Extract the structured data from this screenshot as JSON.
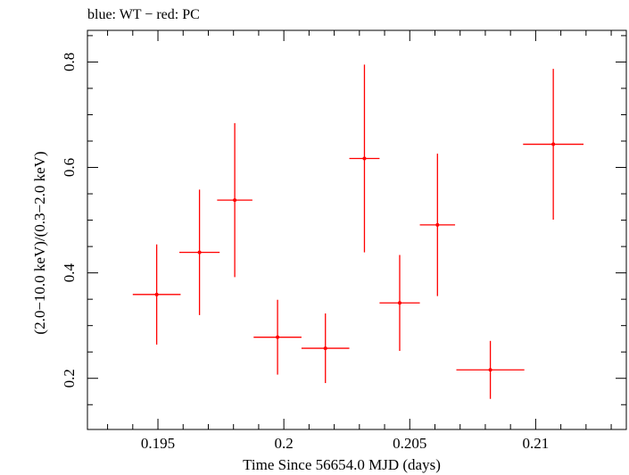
{
  "chart_data": {
    "type": "scatter",
    "title": "blue: WT − red: PC",
    "xlabel": "Time Since 56654.0 MJD (days)",
    "ylabel": "(2.0−10.0 keV)/(0.3−2.0 keV)",
    "xlim": [
      0.1922,
      0.2136
    ],
    "ylim": [
      0.103,
      0.86
    ],
    "x_ticks": [
      {
        "value": 0.195,
        "label": "0.195"
      },
      {
        "value": 0.2,
        "label": "0.2"
      },
      {
        "value": 0.205,
        "label": "0.205"
      },
      {
        "value": 0.21,
        "label": "0.21"
      }
    ],
    "x_minor_step": 0.001,
    "y_ticks": [
      {
        "value": 0.2,
        "label": "0.2"
      },
      {
        "value": 0.4,
        "label": "0.4"
      },
      {
        "value": 0.6,
        "label": "0.6"
      },
      {
        "value": 0.8,
        "label": "0.8"
      }
    ],
    "y_minor_step": 0.05,
    "grid": false,
    "series": [
      {
        "color": "#ff0000",
        "points": [
          {
            "x": 0.19495,
            "xerr": 0.00095,
            "y": 0.359,
            "yerr_low": 0.095,
            "yerr_high": 0.095
          },
          {
            "x": 0.19665,
            "xerr": 0.0008,
            "y": 0.439,
            "yerr_low": 0.119,
            "yerr_high": 0.119
          },
          {
            "x": 0.19805,
            "xerr": 0.0007,
            "y": 0.538,
            "yerr_low": 0.146,
            "yerr_high": 0.146
          },
          {
            "x": 0.19975,
            "xerr": 0.00095,
            "y": 0.278,
            "yerr_low": 0.071,
            "yerr_high": 0.071
          },
          {
            "x": 0.20165,
            "xerr": 0.00095,
            "y": 0.257,
            "yerr_low": 0.066,
            "yerr_high": 0.066
          },
          {
            "x": 0.2032,
            "xerr": 0.0006,
            "y": 0.617,
            "yerr_low": 0.178,
            "yerr_high": 0.178
          },
          {
            "x": 0.2046,
            "xerr": 0.0008,
            "y": 0.343,
            "yerr_low": 0.091,
            "yerr_high": 0.091
          },
          {
            "x": 0.2061,
            "xerr": 0.0007,
            "y": 0.491,
            "yerr_low": 0.135,
            "yerr_high": 0.135
          },
          {
            "x": 0.2082,
            "xerr": 0.00135,
            "y": 0.216,
            "yerr_low": 0.055,
            "yerr_high": 0.055
          },
          {
            "x": 0.2107,
            "xerr": 0.0012,
            "y": 0.644,
            "yerr_low": 0.143,
            "yerr_high": 0.143
          }
        ]
      }
    ]
  }
}
